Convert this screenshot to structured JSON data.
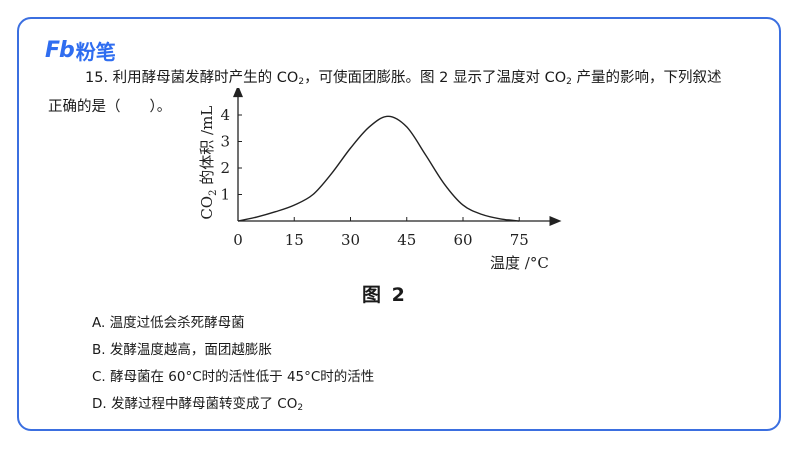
{
  "brand": {
    "mark": "Fb",
    "name": "粉笔",
    "color": "#2f6df0"
  },
  "question": {
    "line1_pre": "15. 利用酵母菌发酵时产生的 CO",
    "line1_sub": "2",
    "line1_mid": "，可使面团膨胀。图 2 显示了温度对 CO",
    "line1_sub2": "2",
    "line1_post": " 产量的影响，下列叙述",
    "line2": "正确的是（　　）。"
  },
  "figure_caption": "图 2",
  "chart_data": {
    "type": "line",
    "ylabel_pre": "CO",
    "ylabel_sub": "2",
    "ylabel_post": " 的体积 /mL",
    "xlabel": "温度 /°C",
    "xticks": [
      0,
      15,
      30,
      45,
      60,
      75
    ],
    "yticks": [
      1,
      2,
      3,
      4
    ],
    "xlim": [
      0,
      82
    ],
    "ylim": [
      0,
      4.6
    ],
    "x": [
      0,
      5,
      10,
      15,
      20,
      25,
      30,
      35,
      40,
      45,
      50,
      55,
      60,
      65,
      70,
      75
    ],
    "y": [
      0,
      0.15,
      0.35,
      0.6,
      1.0,
      1.8,
      2.75,
      3.55,
      3.95,
      3.55,
      2.5,
      1.4,
      0.6,
      0.25,
      0.08,
      0
    ],
    "grid": false
  },
  "options": [
    {
      "label": "A. 温度过低会杀死酵母菌"
    },
    {
      "label": "B. 发酵温度越高，面团越膨胀"
    },
    {
      "label": "C. 酵母菌在 60°C时的活性低于 45°C时的活性"
    },
    {
      "label_pre": "D. 发酵过程中酵母菌转变成了 CO",
      "label_sub": "2"
    }
  ]
}
